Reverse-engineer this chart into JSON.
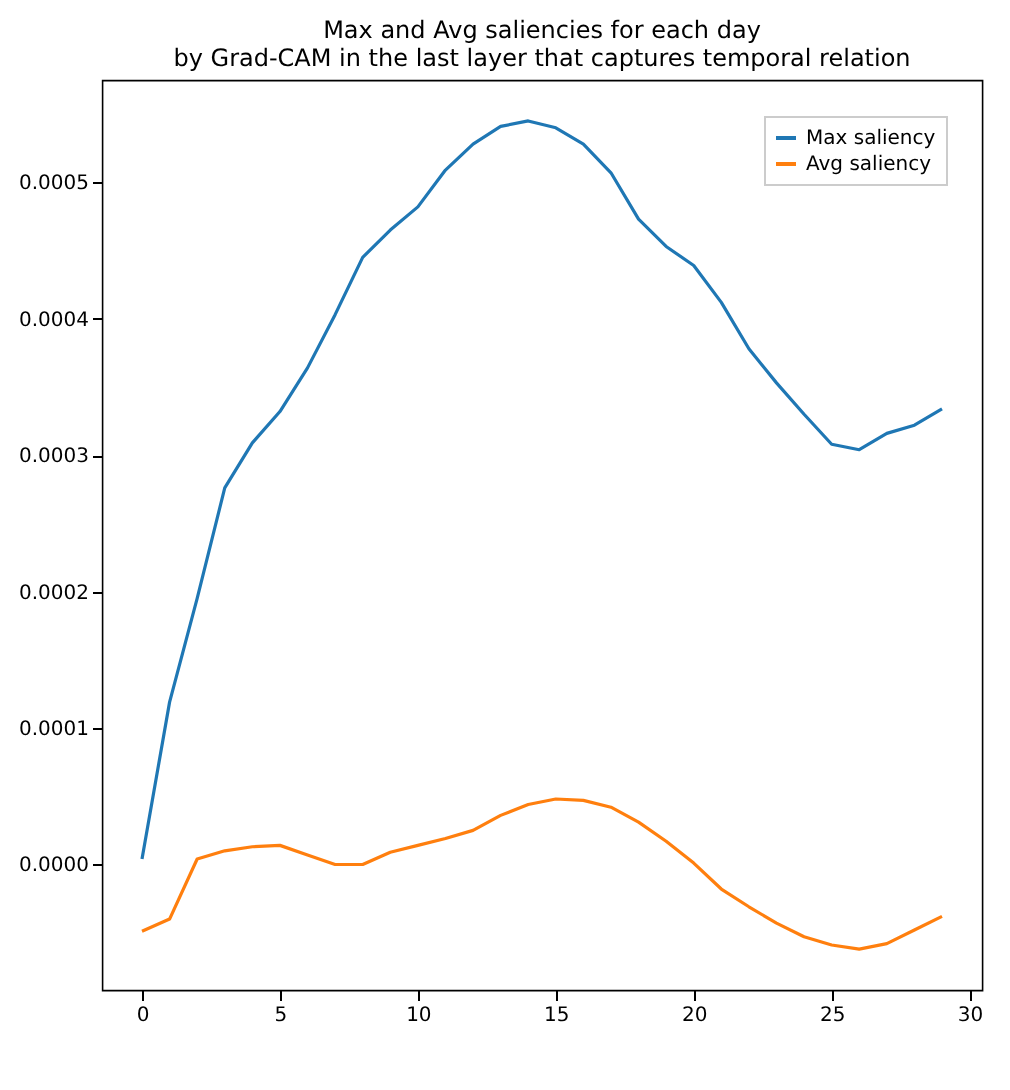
{
  "chart_data": {
    "type": "line",
    "title": "Max and Avg saliencies for each day\nby Grad-CAM in the last layer that captures temporal relation",
    "x": [
      0,
      1,
      2,
      3,
      4,
      5,
      6,
      7,
      8,
      9,
      10,
      11,
      12,
      13,
      14,
      15,
      16,
      17,
      18,
      19,
      20,
      21,
      22,
      23,
      24,
      25,
      26,
      27,
      28,
      29
    ],
    "series": [
      {
        "name": "Max saliency",
        "color": "#1f77b4",
        "values": [
          4e-06,
          0.000119,
          0.000195,
          0.000276,
          0.000309,
          0.000332,
          0.000364,
          0.000403,
          0.000445,
          0.000465,
          0.000482,
          0.000509,
          0.000528,
          0.000541,
          0.000545,
          0.00054,
          0.000528,
          0.000507,
          0.000473,
          0.000453,
          0.000439,
          0.000412,
          0.000378,
          0.000353,
          0.00033,
          0.000308,
          0.000304,
          0.000316,
          0.000322,
          0.000334
        ]
      },
      {
        "name": "Avg saliency",
        "color": "#ff7f0e",
        "values": [
          -4.9e-05,
          -4e-05,
          4e-06,
          1e-05,
          1.3e-05,
          1.4e-05,
          7e-06,
          0.0,
          0.0,
          9e-06,
          1.4e-05,
          1.9e-05,
          2.5e-05,
          3.6e-05,
          4.4e-05,
          4.8e-05,
          4.7e-05,
          4.2e-05,
          3.1e-05,
          1.7e-05,
          1e-06,
          -1.8e-05,
          -3.1e-05,
          -4.3e-05,
          -5.3e-05,
          -5.9e-05,
          -6.2e-05,
          -5.8e-05,
          -4.8e-05,
          -3.8e-05
        ]
      }
    ],
    "xlim": [
      -1.45,
      30.45
    ],
    "xticks": [
      0,
      5,
      10,
      15,
      20,
      25,
      30
    ],
    "ylim": [
      -9.2e-05,
      0.000575
    ],
    "yticks": [
      {
        "value": 0,
        "label": "0.0000"
      },
      0.0001,
      0.0002,
      0.0003,
      0.0004,
      0.0005
    ],
    "legend": "top right",
    "grid": false,
    "line_style": "solid",
    "marker": "none"
  }
}
